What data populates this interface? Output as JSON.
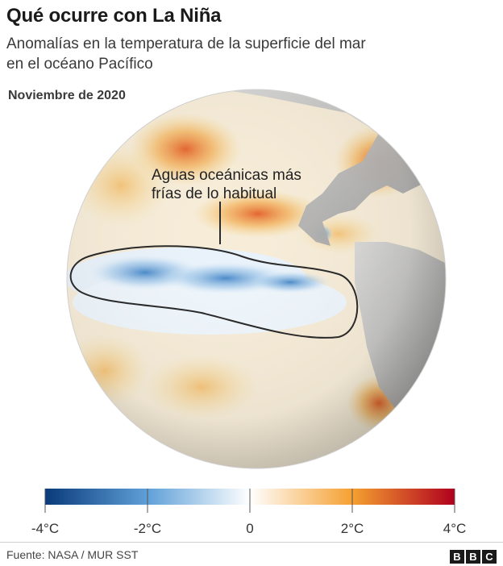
{
  "header": {
    "title": "Qué ocurre con La Niña",
    "subtitle_line1": "Anomalías en la temperatura de la superficie del mar",
    "subtitle_line2": "en el océano Pacífico",
    "date": "Noviembre de 2020"
  },
  "annotation": {
    "line1": "Aguas oceánicas más",
    "line2": "frías de lo habitual"
  },
  "legend": {
    "ticks": [
      {
        "value": -4,
        "label": "-4°C"
      },
      {
        "value": -2,
        "label": "-2°C"
      },
      {
        "value": 0,
        "label": "0"
      },
      {
        "value": 2,
        "label": "2°C"
      },
      {
        "value": 4,
        "label": "4°C"
      }
    ],
    "range": [
      -4,
      4
    ],
    "colors": {
      "cold_extreme": "#0a3a7a",
      "cold_mid": "#5fa0d8",
      "neutral": "#ffffff",
      "warm_mid": "#f5a030",
      "warm_extreme": "#b0001e"
    }
  },
  "footer": {
    "source": "Fuente: NASA / MUR SST",
    "brand_letters": [
      "B",
      "B",
      "C"
    ]
  }
}
